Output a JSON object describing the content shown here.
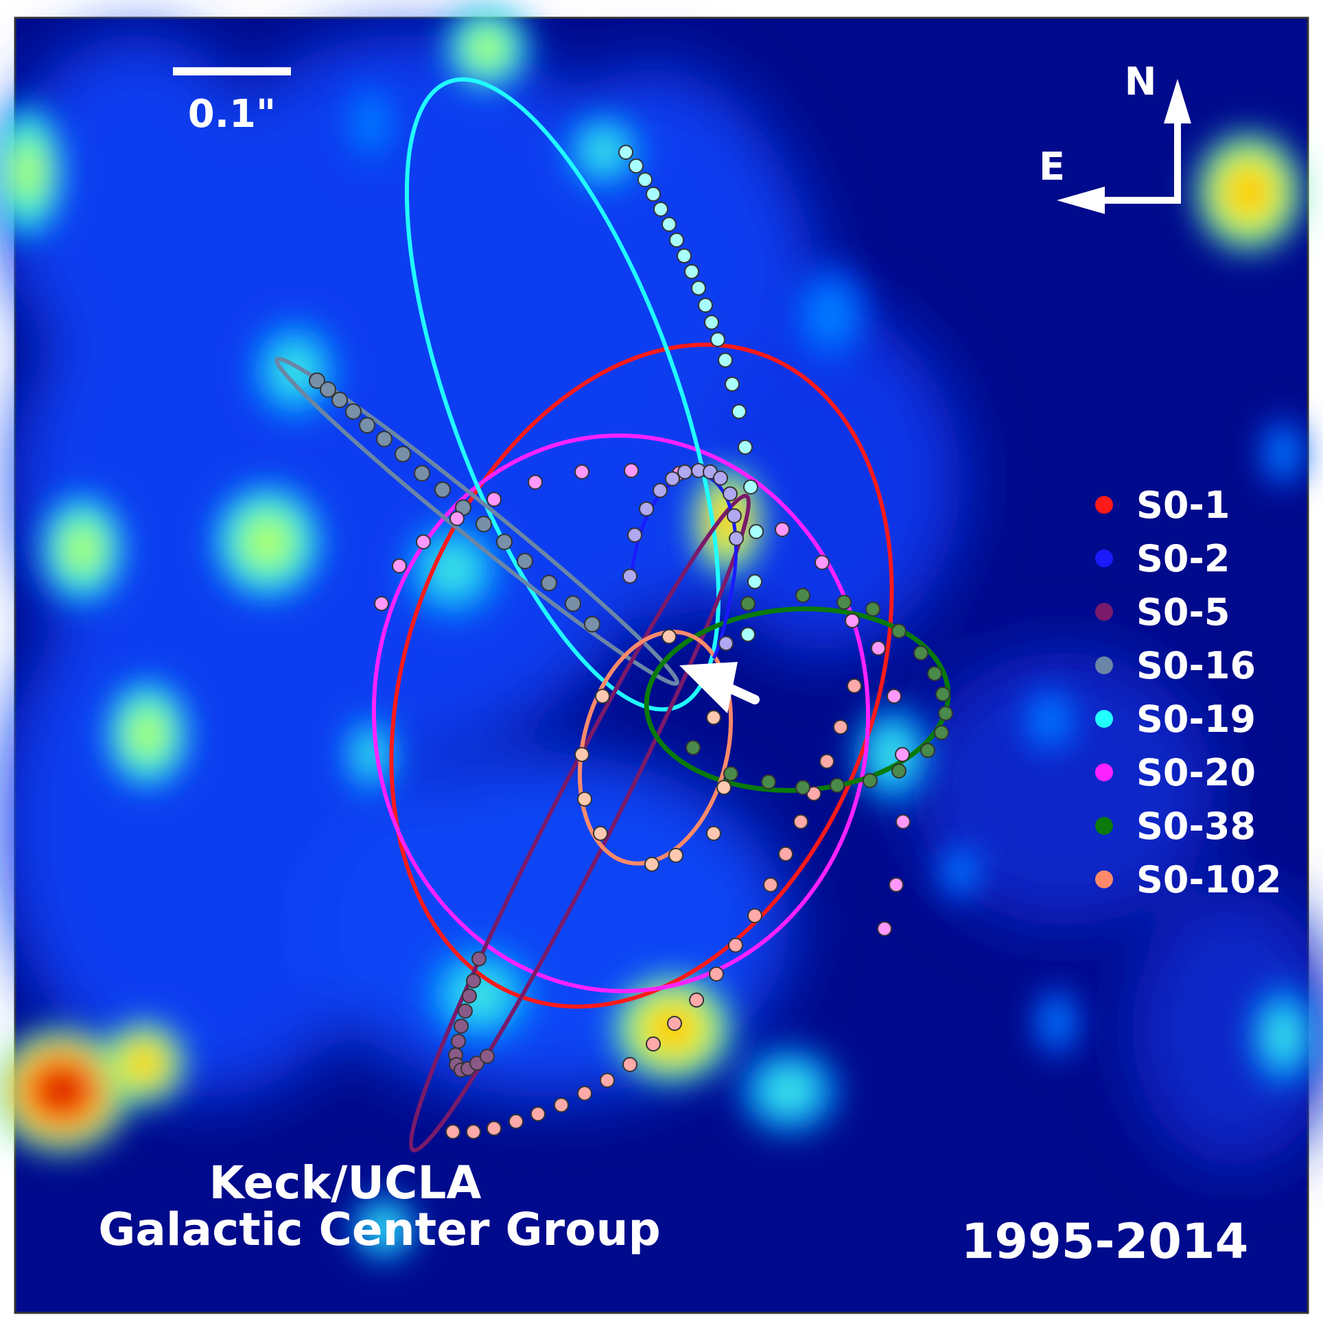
{
  "scale_bar": {
    "label": "0.1\""
  },
  "compass": {
    "north": "N",
    "east": "E"
  },
  "legend": [
    {
      "name": "S0-1",
      "color": "#ff1a1a"
    },
    {
      "name": "S0-2",
      "color": "#1a1aff"
    },
    {
      "name": "S0-5",
      "color": "#7a1a6a"
    },
    {
      "name": "S0-16",
      "color": "#6a86a6"
    },
    {
      "name": "S0-19",
      "color": "#22ffff"
    },
    {
      "name": "S0-20",
      "color": "#ff22ff"
    },
    {
      "name": "S0-38",
      "color": "#0a7a0a"
    },
    {
      "name": "S0-102",
      "color": "#ff8a6a"
    }
  ],
  "credit": {
    "line1": "Keck/UCLA",
    "line2": "Galactic Center Group"
  },
  "date_range": "1995-2014"
}
